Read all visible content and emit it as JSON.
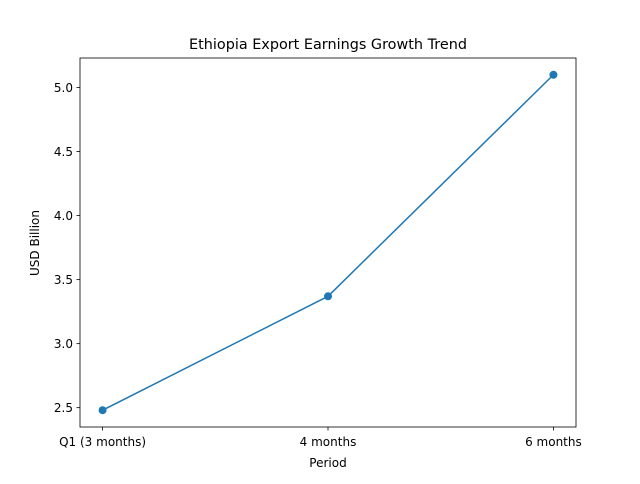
{
  "chart_data": {
    "type": "line",
    "title": "Ethiopia Export Earnings Growth Trend",
    "xlabel": "Period",
    "ylabel": "USD Billion",
    "categories": [
      "Q1 (3 months)",
      "4 months",
      "6 months"
    ],
    "series": [
      {
        "values": [
          2.48,
          3.37,
          5.1
        ],
        "color": "#1f77b4",
        "marker": "circle"
      }
    ],
    "yticks": [
      "2.5",
      "3.0",
      "3.5",
      "4.0",
      "4.5",
      "5.0"
    ],
    "ylim": [
      2.349,
      5.231
    ],
    "grid": false,
    "legend": "none"
  }
}
